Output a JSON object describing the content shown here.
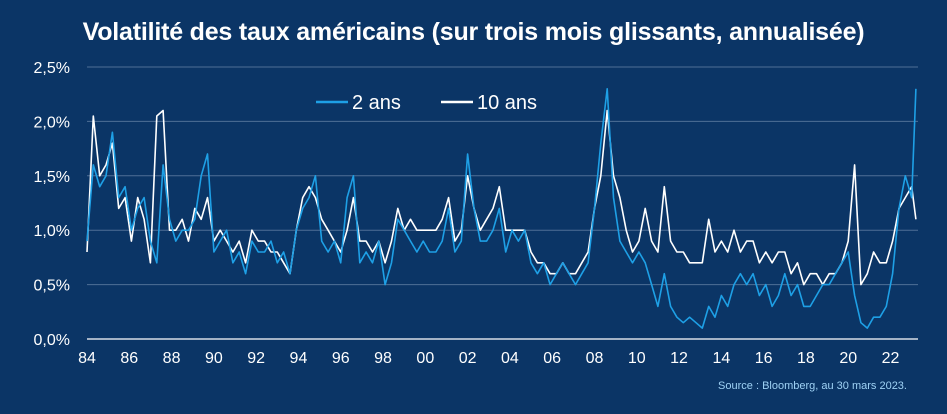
{
  "chart_data": {
    "type": "line",
    "title": "Volatilité des taux américains (sur trois mois glissants, annualisée)",
    "source": "Source : Bloomberg, au 30 mars 2023.",
    "xlabel": "",
    "ylabel": "",
    "x_tick_labels": [
      "84",
      "86",
      "88",
      "90",
      "92",
      "94",
      "96",
      "98",
      "00",
      "02",
      "04",
      "06",
      "08",
      "10",
      "12",
      "14",
      "16",
      "18",
      "20",
      "22"
    ],
    "y_tick_labels": [
      "0,0%",
      "0,5%",
      "1,0%",
      "1,5%",
      "2,0%",
      "2,5%"
    ],
    "ylim": [
      0,
      2.5
    ],
    "xlim": [
      1984,
      2023.3
    ],
    "grid": "horizontal",
    "legend_position": "top-center",
    "colors": {
      "background": "#0b3566",
      "series_2y": "#1ea0e6",
      "series_10y": "#ffffff",
      "grid": "#4f6f96"
    },
    "series": [
      {
        "name": "2 ans",
        "x": [
          1984.0,
          1984.3,
          1984.6,
          1984.9,
          1985.2,
          1985.5,
          1985.8,
          1986.1,
          1986.4,
          1986.7,
          1987.0,
          1987.3,
          1987.6,
          1987.9,
          1988.2,
          1988.5,
          1988.8,
          1989.1,
          1989.4,
          1989.7,
          1990.0,
          1990.3,
          1990.6,
          1990.9,
          1991.2,
          1991.5,
          1991.8,
          1992.1,
          1992.4,
          1992.7,
          1993.0,
          1993.3,
          1993.6,
          1993.9,
          1994.2,
          1994.5,
          1994.8,
          1995.1,
          1995.4,
          1995.7,
          1996.0,
          1996.3,
          1996.6,
          1996.9,
          1997.2,
          1997.5,
          1997.8,
          1998.1,
          1998.4,
          1998.7,
          1999.0,
          1999.3,
          1999.6,
          1999.9,
          2000.2,
          2000.5,
          2000.8,
          2001.1,
          2001.4,
          2001.7,
          2002.0,
          2002.3,
          2002.6,
          2002.9,
          2003.2,
          2003.5,
          2003.8,
          2004.1,
          2004.4,
          2004.7,
          2005.0,
          2005.3,
          2005.6,
          2005.9,
          2006.2,
          2006.5,
          2006.8,
          2007.1,
          2007.4,
          2007.7,
          2008.0,
          2008.3,
          2008.6,
          2008.9,
          2009.2,
          2009.5,
          2009.8,
          2010.1,
          2010.4,
          2010.7,
          2011.0,
          2011.3,
          2011.6,
          2011.9,
          2012.2,
          2012.5,
          2012.8,
          2013.1,
          2013.4,
          2013.7,
          2014.0,
          2014.3,
          2014.6,
          2014.9,
          2015.2,
          2015.5,
          2015.8,
          2016.1,
          2016.4,
          2016.7,
          2017.0,
          2017.3,
          2017.6,
          2017.9,
          2018.2,
          2018.5,
          2018.8,
          2019.1,
          2019.4,
          2019.7,
          2020.0,
          2020.3,
          2020.6,
          2020.9,
          2021.2,
          2021.5,
          2021.8,
          2022.1,
          2022.4,
          2022.7,
          2023.0,
          2023.2
        ],
        "values": [
          0.9,
          1.6,
          1.4,
          1.5,
          1.9,
          1.3,
          1.4,
          1.0,
          1.2,
          1.3,
          0.9,
          0.7,
          1.6,
          1.1,
          0.9,
          1.0,
          1.0,
          1.1,
          1.5,
          1.7,
          0.8,
          0.9,
          1.0,
          0.7,
          0.8,
          0.6,
          0.9,
          0.8,
          0.8,
          0.9,
          0.7,
          0.8,
          0.6,
          1.0,
          1.2,
          1.3,
          1.5,
          0.9,
          0.8,
          0.9,
          0.7,
          1.3,
          1.5,
          0.7,
          0.8,
          0.7,
          0.9,
          0.5,
          0.7,
          1.1,
          1.0,
          0.9,
          0.8,
          0.9,
          0.8,
          0.8,
          0.9,
          1.2,
          0.8,
          0.9,
          1.7,
          1.2,
          0.9,
          0.9,
          1.0,
          1.2,
          0.8,
          1.0,
          0.9,
          1.0,
          0.7,
          0.6,
          0.7,
          0.5,
          0.6,
          0.7,
          0.6,
          0.5,
          0.6,
          0.7,
          1.2,
          1.8,
          2.3,
          1.3,
          0.9,
          0.8,
          0.7,
          0.8,
          0.7,
          0.5,
          0.3,
          0.6,
          0.3,
          0.2,
          0.15,
          0.2,
          0.15,
          0.1,
          0.3,
          0.2,
          0.4,
          0.3,
          0.5,
          0.6,
          0.5,
          0.6,
          0.4,
          0.5,
          0.3,
          0.4,
          0.6,
          0.4,
          0.5,
          0.3,
          0.3,
          0.4,
          0.5,
          0.5,
          0.6,
          0.7,
          0.8,
          0.4,
          0.15,
          0.1,
          0.2,
          0.2,
          0.3,
          0.6,
          1.2,
          1.5,
          1.3,
          2.3
        ]
      },
      {
        "name": "10 ans",
        "x": [
          1984.0,
          1984.3,
          1984.6,
          1984.9,
          1985.2,
          1985.5,
          1985.8,
          1986.1,
          1986.4,
          1986.7,
          1987.0,
          1987.3,
          1987.6,
          1987.9,
          1988.2,
          1988.5,
          1988.8,
          1989.1,
          1989.4,
          1989.7,
          1990.0,
          1990.3,
          1990.6,
          1990.9,
          1991.2,
          1991.5,
          1991.8,
          1992.1,
          1992.4,
          1992.7,
          1993.0,
          1993.3,
          1993.6,
          1993.9,
          1994.2,
          1994.5,
          1994.8,
          1995.1,
          1995.4,
          1995.7,
          1996.0,
          1996.3,
          1996.6,
          1996.9,
          1997.2,
          1997.5,
          1997.8,
          1998.1,
          1998.4,
          1998.7,
          1999.0,
          1999.3,
          1999.6,
          1999.9,
          2000.2,
          2000.5,
          2000.8,
          2001.1,
          2001.4,
          2001.7,
          2002.0,
          2002.3,
          2002.6,
          2002.9,
          2003.2,
          2003.5,
          2003.8,
          2004.1,
          2004.4,
          2004.7,
          2005.0,
          2005.3,
          2005.6,
          2005.9,
          2006.2,
          2006.5,
          2006.8,
          2007.1,
          2007.4,
          2007.7,
          2008.0,
          2008.3,
          2008.6,
          2008.9,
          2009.2,
          2009.5,
          2009.8,
          2010.1,
          2010.4,
          2010.7,
          2011.0,
          2011.3,
          2011.6,
          2011.9,
          2012.2,
          2012.5,
          2012.8,
          2013.1,
          2013.4,
          2013.7,
          2014.0,
          2014.3,
          2014.6,
          2014.9,
          2015.2,
          2015.5,
          2015.8,
          2016.1,
          2016.4,
          2016.7,
          2017.0,
          2017.3,
          2017.6,
          2017.9,
          2018.2,
          2018.5,
          2018.8,
          2019.1,
          2019.4,
          2019.7,
          2020.0,
          2020.3,
          2020.6,
          2020.9,
          2021.2,
          2021.5,
          2021.8,
          2022.1,
          2022.4,
          2022.7,
          2023.0,
          2023.2
        ],
        "values": [
          0.8,
          2.05,
          1.5,
          1.6,
          1.8,
          1.2,
          1.3,
          0.9,
          1.3,
          1.1,
          0.7,
          2.05,
          2.1,
          1.0,
          1.0,
          1.1,
          0.9,
          1.2,
          1.1,
          1.3,
          0.9,
          1.0,
          0.9,
          0.8,
          0.9,
          0.7,
          1.0,
          0.9,
          0.9,
          0.8,
          0.8,
          0.7,
          0.6,
          1.0,
          1.3,
          1.4,
          1.3,
          1.1,
          1.0,
          0.9,
          0.8,
          1.0,
          1.3,
          0.9,
          0.9,
          0.8,
          0.9,
          0.7,
          0.9,
          1.2,
          1.0,
          1.1,
          1.0,
          1.0,
          1.0,
          1.0,
          1.1,
          1.3,
          0.9,
          1.0,
          1.5,
          1.2,
          1.0,
          1.1,
          1.2,
          1.4,
          1.0,
          1.0,
          1.0,
          1.0,
          0.8,
          0.7,
          0.7,
          0.6,
          0.6,
          0.7,
          0.6,
          0.6,
          0.7,
          0.8,
          1.2,
          1.5,
          2.1,
          1.5,
          1.3,
          1.0,
          0.8,
          0.9,
          1.2,
          0.9,
          0.8,
          1.4,
          0.9,
          0.8,
          0.8,
          0.7,
          0.7,
          0.7,
          1.1,
          0.8,
          0.9,
          0.8,
          1.0,
          0.8,
          0.9,
          0.9,
          0.7,
          0.8,
          0.7,
          0.8,
          0.8,
          0.6,
          0.7,
          0.5,
          0.6,
          0.6,
          0.5,
          0.6,
          0.6,
          0.7,
          0.9,
          1.6,
          0.5,
          0.6,
          0.8,
          0.7,
          0.7,
          0.9,
          1.2,
          1.3,
          1.4,
          1.1
        ]
      }
    ]
  }
}
